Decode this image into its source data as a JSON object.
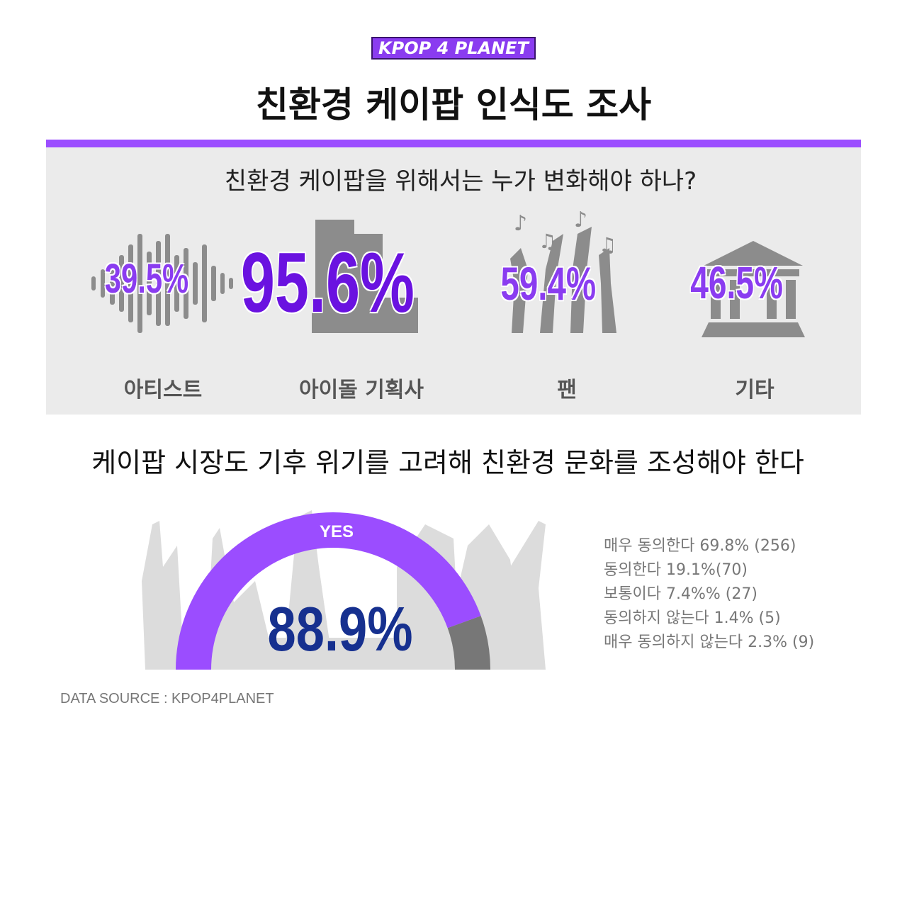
{
  "logo": "KPOP 4 PLANET",
  "title": "친환경 케이팝 인식도 조사",
  "section1": {
    "question": "친환경 케이팝을 위해서는 누가 변화해야 하나?",
    "items": [
      {
        "label": "아티스트",
        "value": "39.5%"
      },
      {
        "label": "아이돌  기획사",
        "value": "95.6%"
      },
      {
        "label": "팬",
        "value": "59.4%"
      },
      {
        "label": "기타",
        "value": "46.5%"
      }
    ]
  },
  "section2": {
    "question": "케이팝 시장도 기후 위기를 고려해 친환경 문화를 조성해야 한다",
    "gauge": {
      "label": "YES",
      "value": 88.9,
      "value_label": "88.9%"
    },
    "breakdown": [
      "매우 동의한다 69.8% (256)",
      "동의한다 19.1%(70)",
      "보통이다 7.4%% (27)",
      "동의하지 않는다 1.4% (5)",
      "매우 동의하지 않는다 2.3% (9)"
    ]
  },
  "source": "DATA SOURCE : KPOP4PLANET"
}
